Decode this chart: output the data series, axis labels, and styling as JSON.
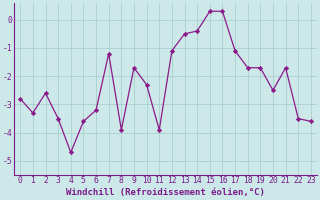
{
  "x": [
    0,
    1,
    2,
    3,
    4,
    5,
    6,
    7,
    8,
    9,
    10,
    11,
    12,
    13,
    14,
    15,
    16,
    17,
    18,
    19,
    20,
    21,
    22,
    23
  ],
  "y": [
    -2.8,
    -3.3,
    -2.6,
    -3.5,
    -4.7,
    -3.6,
    -3.2,
    -1.2,
    -3.9,
    -1.7,
    -2.3,
    -3.9,
    -1.1,
    -0.5,
    -0.4,
    0.3,
    0.3,
    -1.1,
    -1.7,
    -1.7,
    -2.5,
    -1.7,
    -3.5,
    -3.6
  ],
  "line_color": "#8b1a8b",
  "marker": "D",
  "marker_size": 2.2,
  "bg_color": "#cce8e8",
  "grid_color": "#aacece",
  "xlabel": "Windchill (Refroidissement éolien,°C)",
  "ylim": [
    -5.5,
    0.6
  ],
  "xlim": [
    -0.5,
    23.5
  ],
  "yticks": [
    0,
    -1,
    -2,
    -3,
    -4,
    -5
  ],
  "xticks": [
    0,
    1,
    2,
    3,
    4,
    5,
    6,
    7,
    8,
    9,
    10,
    11,
    12,
    13,
    14,
    15,
    16,
    17,
    18,
    19,
    20,
    21,
    22,
    23
  ],
  "axis_color": "#7b1a8b",
  "label_fontsize": 6.5,
  "tick_fontsize": 5.8
}
